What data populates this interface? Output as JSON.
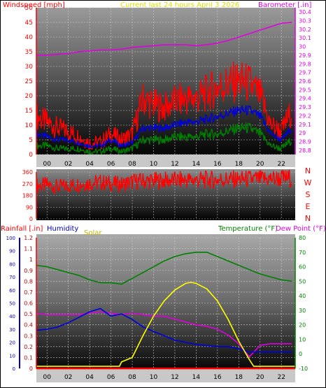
{
  "chart_data": [
    {
      "id": "wind-baro",
      "type": "line",
      "title": "Current last 24 hours April 3 2026",
      "ylabel_left": "Windspeed [mph]",
      "ylabel_right": "Barometer [.in]",
      "y_left_ticks": [
        "0",
        "5",
        "10",
        "15",
        "20",
        "25",
        "30",
        "35",
        "40",
        "45",
        "50"
      ],
      "y_right_ticks": [
        "28.8",
        "28.9",
        "29",
        "29.1",
        "29.2",
        "29.3",
        "29.4",
        "29.5",
        "29.6",
        "29.7",
        "29.8",
        "29.9",
        "30",
        "30.1",
        "30.2",
        "30.3",
        "30.4"
      ],
      "x_ticks": [
        "00",
        "02",
        "04",
        "06",
        "08",
        "10",
        "12",
        "14",
        "16",
        "18",
        "20",
        "22"
      ],
      "ylim_left": [
        0,
        50
      ],
      "ylim_right": [
        28.75,
        30.45
      ],
      "xlim": [
        -1,
        23.3
      ],
      "grid": true,
      "series": [
        {
          "axis": "right",
          "color": "#e000e0",
          "x": [
            -1,
            0,
            1,
            2,
            3,
            4,
            5,
            6,
            7,
            8,
            9,
            10,
            11,
            12,
            13,
            14,
            15,
            16,
            17,
            18,
            19,
            20,
            21,
            22,
            23
          ],
          "values": [
            29.9,
            29.9,
            29.91,
            29.92,
            29.94,
            29.95,
            29.96,
            29.96,
            29.97,
            29.99,
            30.0,
            30.01,
            30.02,
            30.02,
            30.02,
            30.01,
            30.02,
            30.04,
            30.07,
            30.11,
            30.15,
            30.19,
            30.23,
            30.27,
            30.28
          ]
        },
        {
          "axis": "left",
          "color": "#ff0000",
          "x": [
            -1,
            0,
            1,
            2,
            3,
            4,
            5,
            6,
            7,
            8,
            9,
            10,
            11,
            12,
            13,
            14,
            15,
            16,
            17,
            18,
            19,
            20,
            21,
            22,
            23
          ],
          "values": [
            13,
            11,
            9,
            8,
            6,
            4,
            4,
            7,
            5,
            7,
            19,
            17,
            16,
            18,
            19,
            19,
            21,
            23,
            24,
            25,
            24,
            20,
            10,
            8,
            15
          ]
        },
        {
          "axis": "left",
          "color": "#0000dd",
          "x": [
            -1,
            0,
            1,
            2,
            3,
            4,
            5,
            6,
            7,
            8,
            9,
            10,
            11,
            12,
            13,
            14,
            15,
            16,
            17,
            18,
            19,
            20,
            21,
            22,
            23
          ],
          "values": [
            7,
            6,
            5,
            5,
            4,
            3,
            3,
            5,
            3,
            4,
            9,
            9,
            9,
            10,
            11,
            11,
            12,
            13,
            14,
            15,
            15,
            13,
            7,
            5,
            9
          ]
        },
        {
          "axis": "left",
          "color": "#008000",
          "x": [
            -1,
            0,
            1,
            2,
            3,
            4,
            5,
            6,
            7,
            8,
            9,
            10,
            11,
            12,
            13,
            14,
            15,
            16,
            17,
            18,
            19,
            20,
            21,
            22,
            23
          ],
          "values": [
            3,
            3,
            2,
            2,
            2,
            1,
            1,
            2,
            1,
            2,
            5,
            5,
            5,
            6,
            6,
            6,
            7,
            7,
            8,
            9,
            9,
            7,
            3,
            2,
            5
          ]
        }
      ]
    },
    {
      "id": "wind-dir",
      "type": "line",
      "y_ticks": [
        "360",
        "270",
        "180",
        "90",
        "0"
      ],
      "ylim": [
        0,
        360
      ],
      "compass_labels": [
        "N",
        "W",
        "S",
        "E",
        "N"
      ],
      "x_ticks": [
        "00",
        "02",
        "04",
        "06",
        "08",
        "10",
        "12",
        "14",
        "16",
        "18",
        "20",
        "22"
      ],
      "xlim": [
        -1,
        23.3
      ],
      "series": [
        {
          "color": "#ff0000",
          "x": [
            -1,
            0,
            1,
            2,
            3,
            4,
            5,
            6,
            7,
            8,
            9,
            10,
            11,
            12,
            13,
            14,
            15,
            16,
            17,
            18,
            19,
            20,
            21,
            22,
            23
          ],
          "values": [
            255,
            260,
            245,
            255,
            265,
            275,
            280,
            270,
            265,
            285,
            290,
            292,
            295,
            295,
            298,
            298,
            300,
            300,
            302,
            302,
            305,
            305,
            308,
            310,
            312
          ]
        }
      ]
    },
    {
      "id": "rain-humidity-temp",
      "type": "line",
      "labels": {
        "rainfall": "Rainfall [.in]",
        "humidity": "Humidity",
        "solar": "Solar",
        "temperature": "Temperature (°F)",
        "dewpoint": "Dew Point (°F)"
      },
      "humidity_ticks": [
        "0",
        "10",
        "20",
        "30",
        "40",
        "50",
        "60",
        "70",
        "80",
        "90",
        "100"
      ],
      "rain_ticks": [
        "0",
        "0.1",
        "0.2",
        "0.3",
        "0.4",
        "0.5",
        "0.6",
        "0.7",
        "0.8",
        "0.9",
        "1",
        "1.1",
        "1.2"
      ],
      "temp_ticks": [
        "-10",
        "0",
        "10",
        "20",
        "30",
        "40",
        "50",
        "60",
        "70",
        "80"
      ],
      "x_ticks": [
        "00",
        "02",
        "04",
        "06",
        "08",
        "10",
        "12",
        "14",
        "16",
        "18",
        "20",
        "22"
      ],
      "ylim_rain": [
        0,
        1.2
      ],
      "ylim_temp": [
        -10,
        80
      ],
      "xlim": [
        -1,
        23.3
      ],
      "series": [
        {
          "name": "Temperature",
          "axis": "temp",
          "color": "#008000",
          "x": [
            -1,
            0,
            1,
            2,
            3,
            4,
            5,
            6,
            7,
            8,
            9,
            10,
            11,
            12,
            13,
            14,
            15,
            16,
            17,
            18,
            19,
            20,
            21,
            22,
            23
          ],
          "values": [
            61,
            60,
            58,
            56,
            54,
            51,
            49,
            49,
            48,
            52,
            56,
            60,
            64,
            67,
            69,
            70,
            70,
            67,
            64,
            61,
            58,
            55,
            53,
            51,
            50
          ]
        },
        {
          "name": "Dew Point",
          "axis": "temp",
          "color": "#e000e0",
          "x": [
            -1,
            0,
            1,
            2,
            3,
            4,
            5,
            6,
            7,
            8,
            9,
            10,
            11,
            12,
            13,
            14,
            15,
            16,
            17,
            18,
            19,
            20,
            21,
            22,
            23
          ],
          "values": [
            28,
            27,
            27,
            27,
            27,
            28,
            29,
            28,
            27,
            28,
            27,
            26,
            26,
            24,
            22,
            20,
            19,
            17,
            13,
            7,
            -2,
            6,
            7,
            7,
            7
          ]
        },
        {
          "name": "Humidity",
          "axis": "rain",
          "color": "#0000dd",
          "x": [
            -1,
            0,
            1,
            2,
            3,
            4,
            5,
            6,
            7,
            8,
            9,
            10,
            11,
            12,
            13,
            14,
            15,
            16,
            17,
            18,
            19,
            20,
            21,
            22,
            23
          ],
          "values": [
            0.35,
            0.36,
            0.38,
            0.42,
            0.47,
            0.52,
            0.55,
            0.48,
            0.5,
            0.45,
            0.38,
            0.34,
            0.3,
            0.26,
            0.24,
            0.22,
            0.21,
            0.2,
            0.2,
            0.18,
            0.15,
            0.15,
            0.15,
            0.15,
            0.15
          ]
        },
        {
          "name": "Solar",
          "axis": "rain",
          "color": "#ffff00",
          "x": [
            -1,
            6.8,
            7.0,
            8,
            9,
            10,
            11,
            12,
            13,
            13.5,
            14,
            15,
            16,
            17,
            18,
            19,
            19.4,
            19.6,
            23.3
          ],
          "values": [
            0.02,
            0.02,
            0.06,
            0.1,
            0.3,
            0.48,
            0.62,
            0.72,
            0.78,
            0.79,
            0.78,
            0.73,
            0.62,
            0.45,
            0.25,
            0.08,
            0.02,
            0.02,
            0.02
          ]
        },
        {
          "name": "Rainfall",
          "axis": "rain",
          "color": "#ff0000",
          "x": [
            -1,
            23.3
          ],
          "values": [
            0,
            0
          ]
        }
      ]
    }
  ]
}
